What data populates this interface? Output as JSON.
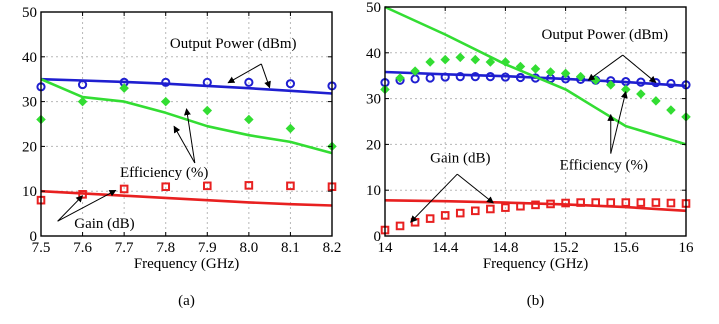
{
  "colors": {
    "blue": "#1f1fd0",
    "green": "#33dd33",
    "red": "#e82020",
    "axis": "#000000",
    "grid": "#b8b8b8"
  },
  "chart_data": [
    {
      "type": "line",
      "caption": "(a)",
      "xlabel": "Frequency (GHz)",
      "ylabel": "",
      "xlim": [
        7.5,
        8.2
      ],
      "ylim": [
        0,
        50
      ],
      "xticks": [
        7.5,
        7.6,
        7.7,
        7.8,
        7.9,
        8.0,
        8.1,
        8.2
      ],
      "xtick_labels": [
        "7.5",
        "7.6",
        "7.7",
        "7.8",
        "7.9",
        "8.0",
        "8.1",
        "8.2"
      ],
      "yticks": [
        0,
        10,
        20,
        30,
        40,
        50
      ],
      "ytick_labels": [
        "0",
        "10",
        "20",
        "30",
        "40",
        "50"
      ],
      "grid": true,
      "series": [
        {
          "name": "Output Power (dBm)",
          "kind": "line",
          "color": "blue",
          "x": [
            7.5,
            7.6,
            7.7,
            7.8,
            7.9,
            8.0,
            8.1,
            8.2
          ],
          "y": [
            35.0,
            34.7,
            34.4,
            34.0,
            33.5,
            33.0,
            32.4,
            31.8
          ]
        },
        {
          "name": "Output Power (dBm)",
          "kind": "markers",
          "marker": "circle",
          "color": "blue",
          "x": [
            7.5,
            7.6,
            7.7,
            7.8,
            7.9,
            8.0,
            8.1,
            8.2
          ],
          "y": [
            33.3,
            33.8,
            34.3,
            34.3,
            34.3,
            34.3,
            34.0,
            33.5
          ]
        },
        {
          "name": "Efficiency (%)",
          "kind": "line",
          "color": "green",
          "x": [
            7.5,
            7.6,
            7.7,
            7.8,
            7.9,
            8.0,
            8.1,
            8.2
          ],
          "y": [
            35.0,
            31.0,
            30.0,
            27.5,
            24.5,
            22.5,
            21.0,
            18.5
          ]
        },
        {
          "name": "Efficiency (%)",
          "kind": "markers",
          "marker": "diamond",
          "color": "green",
          "x": [
            7.5,
            7.6,
            7.7,
            7.8,
            7.9,
            8.0,
            8.1,
            8.2
          ],
          "y": [
            26.0,
            30.0,
            33.0,
            30.0,
            28.0,
            26.0,
            24.0,
            20.0
          ]
        },
        {
          "name": "Gain (dB)",
          "kind": "line",
          "color": "red",
          "x": [
            7.5,
            7.6,
            7.7,
            7.8,
            7.9,
            8.0,
            8.1,
            8.2
          ],
          "y": [
            10.0,
            9.5,
            9.0,
            8.5,
            8.0,
            7.5,
            7.1,
            6.8
          ]
        },
        {
          "name": "Gain (dB)",
          "kind": "markers",
          "marker": "square",
          "color": "red",
          "x": [
            7.5,
            7.6,
            7.7,
            7.8,
            7.9,
            8.0,
            8.1,
            8.2
          ],
          "y": [
            8.0,
            9.3,
            10.5,
            11.0,
            11.2,
            11.3,
            11.2,
            11.0
          ]
        }
      ],
      "annotations": [
        {
          "text": "Output Power (dBm)",
          "color": "blue",
          "label_at": [
            7.81,
            42.0
          ],
          "label_anchor": "start",
          "tail": [
            8.03,
            38.4
          ],
          "targets": [
            [
              7.95,
              34.2
            ],
            [
              8.05,
              33.1
            ]
          ]
        },
        {
          "text": "Efficiency (%)",
          "color": "green",
          "label_at": [
            7.69,
            13.2
          ],
          "label_anchor": "start",
          "tail": [
            7.87,
            16.3
          ],
          "targets": [
            [
              7.85,
              28.4
            ],
            [
              7.82,
              24.5
            ]
          ]
        },
        {
          "text": "Gain (dB)",
          "color": "red",
          "label_at": [
            7.58,
            1.8
          ],
          "label_anchor": "start",
          "tail": [
            7.54,
            3.3
          ],
          "targets": [
            [
              7.6,
              9.0
            ],
            [
              7.68,
              10.2
            ]
          ]
        }
      ]
    },
    {
      "type": "line",
      "caption": "(b)",
      "xlabel": "Frequency (GHz)",
      "ylabel": "",
      "xlim": [
        14,
        16
      ],
      "ylim": [
        0,
        50
      ],
      "xticks": [
        14,
        14.4,
        14.8,
        15.2,
        15.6,
        16
      ],
      "xtick_labels": [
        "14",
        "14.4",
        "14.8",
        "15.2",
        "15.6",
        "16"
      ],
      "yticks": [
        0,
        10,
        20,
        30,
        40,
        50
      ],
      "ytick_labels": [
        "0",
        "10",
        "20",
        "30",
        "40",
        "50"
      ],
      "grid": true,
      "series": [
        {
          "name": "Output Power (dBm)",
          "kind": "line",
          "color": "blue",
          "x": [
            14.0,
            14.4,
            14.8,
            15.2,
            15.6,
            16.0
          ],
          "y": [
            35.8,
            35.3,
            34.9,
            34.3,
            33.6,
            32.8
          ]
        },
        {
          "name": "Output Power (dBm)",
          "kind": "markers",
          "marker": "circle",
          "color": "blue",
          "x": [
            14.0,
            14.1,
            14.2,
            14.3,
            14.4,
            14.5,
            14.6,
            14.7,
            14.8,
            14.9,
            15.0,
            15.1,
            15.2,
            15.3,
            15.4,
            15.5,
            15.6,
            15.7,
            15.8,
            15.9,
            16.0
          ],
          "y": [
            33.5,
            34.0,
            34.3,
            34.5,
            34.7,
            34.8,
            34.8,
            34.8,
            34.7,
            34.6,
            34.5,
            34.4,
            34.3,
            34.2,
            34.0,
            33.9,
            33.7,
            33.6,
            33.5,
            33.3,
            33.0
          ]
        },
        {
          "name": "Efficiency (%)",
          "kind": "line",
          "color": "green",
          "x": [
            14.0,
            14.4,
            14.8,
            15.2,
            15.4,
            15.6,
            16.0
          ],
          "y": [
            50.0,
            44.0,
            37.5,
            32.0,
            28.0,
            24.0,
            20.0
          ]
        },
        {
          "name": "Efficiency (%)",
          "kind": "markers",
          "marker": "diamond",
          "color": "green",
          "x": [
            14.0,
            14.1,
            14.2,
            14.3,
            14.4,
            14.5,
            14.6,
            14.7,
            14.8,
            14.9,
            15.0,
            15.1,
            15.2,
            15.3,
            15.4,
            15.5,
            15.6,
            15.7,
            15.8,
            15.9,
            16.0
          ],
          "y": [
            32.0,
            34.5,
            36.0,
            38.0,
            38.5,
            39.0,
            38.5,
            38.0,
            38.0,
            37.0,
            36.5,
            35.8,
            35.5,
            34.8,
            34.0,
            33.0,
            32.0,
            31.0,
            29.5,
            27.5,
            26.0
          ]
        },
        {
          "name": "Gain (dB)",
          "kind": "line",
          "color": "red",
          "x": [
            14.0,
            14.4,
            14.8,
            15.2,
            15.6,
            16.0
          ],
          "y": [
            7.8,
            7.6,
            7.3,
            6.9,
            6.3,
            5.5
          ]
        },
        {
          "name": "Gain (dB)",
          "kind": "markers",
          "marker": "square",
          "color": "red",
          "x": [
            14.0,
            14.1,
            14.2,
            14.3,
            14.4,
            14.5,
            14.6,
            14.7,
            14.8,
            14.9,
            15.0,
            15.1,
            15.2,
            15.3,
            15.4,
            15.5,
            15.6,
            15.7,
            15.8,
            15.9,
            16.0
          ],
          "y": [
            1.3,
            2.2,
            3.0,
            3.8,
            4.5,
            5.0,
            5.5,
            5.9,
            6.2,
            6.5,
            6.8,
            7.0,
            7.2,
            7.3,
            7.3,
            7.3,
            7.3,
            7.3,
            7.3,
            7.2,
            7.1
          ]
        }
      ],
      "annotations": [
        {
          "text": "Output Power (dBm)",
          "color": "blue",
          "label_at": [
            15.04,
            43.0
          ],
          "label_anchor": "start",
          "tail": [
            15.58,
            39.5
          ],
          "targets": [
            [
              15.35,
              34.0
            ],
            [
              15.8,
              33.5
            ]
          ]
        },
        {
          "text": "Efficiency (%)",
          "color": "green",
          "label_at": [
            15.16,
            14.5
          ],
          "label_anchor": "start",
          "tail": [
            15.5,
            18.0
          ],
          "targets": [
            [
              15.5,
              26.5
            ],
            [
              15.6,
              31.5
            ]
          ]
        },
        {
          "text": "Gain (dB)",
          "color": "red",
          "label_at": [
            14.3,
            16.0
          ],
          "label_anchor": "start",
          "tail": [
            14.48,
            13.5
          ],
          "targets": [
            [
              14.17,
              3.0
            ],
            [
              14.72,
              7.2
            ]
          ]
        }
      ]
    }
  ]
}
